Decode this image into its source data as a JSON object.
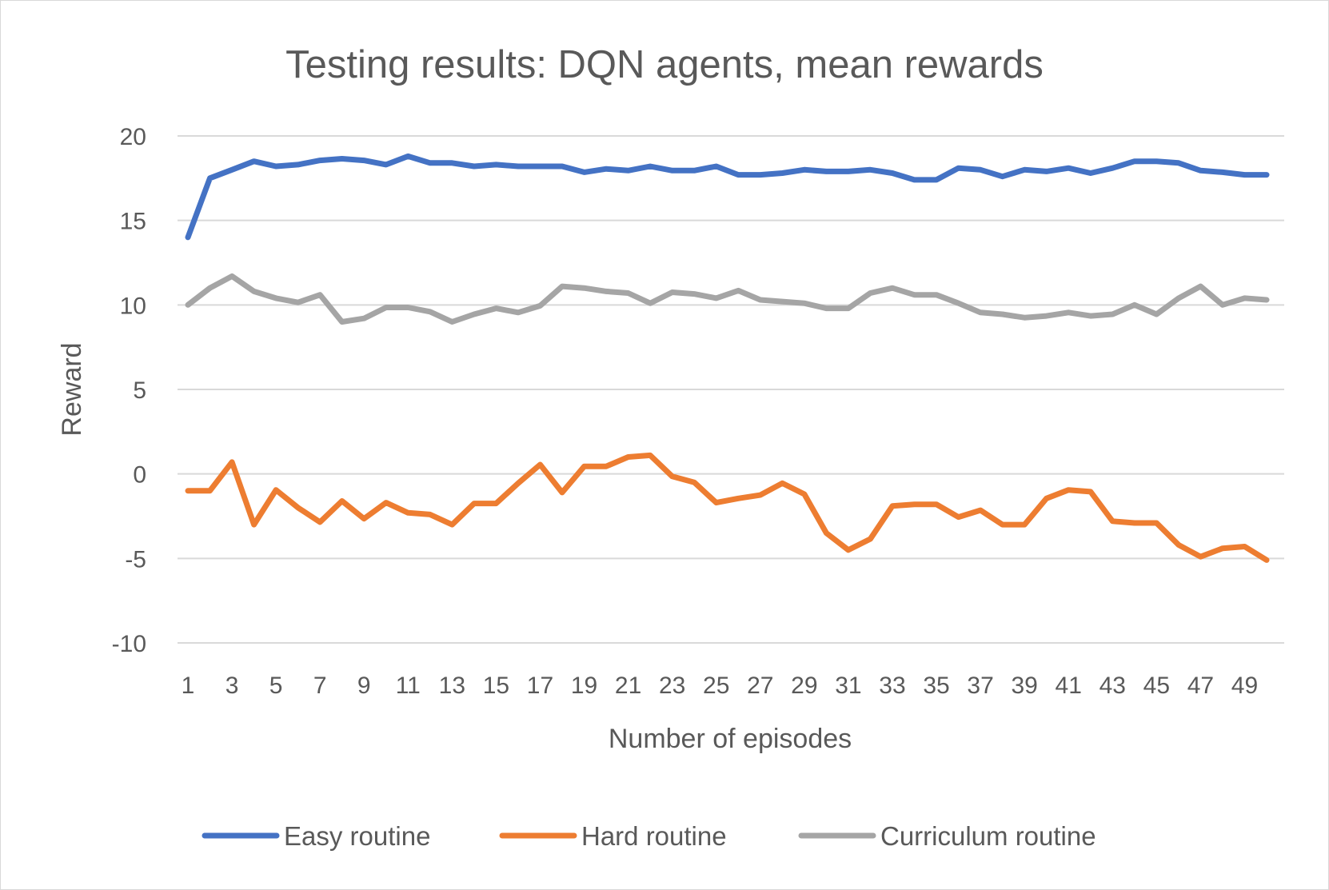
{
  "chart_data": {
    "type": "line",
    "title": "Testing results: DQN agents, mean rewards",
    "xlabel": "Number of episodes",
    "ylabel": "Reward",
    "ylim": [
      -10,
      20
    ],
    "yticks": [
      20,
      15,
      10,
      5,
      0,
      -5,
      -10
    ],
    "x": [
      1,
      2,
      3,
      4,
      5,
      6,
      7,
      8,
      9,
      10,
      11,
      12,
      13,
      14,
      15,
      16,
      17,
      18,
      19,
      20,
      21,
      22,
      23,
      24,
      25,
      26,
      27,
      28,
      29,
      30,
      31,
      32,
      33,
      34,
      35,
      36,
      37,
      38,
      39,
      40,
      41,
      42,
      43,
      44,
      45,
      46,
      47,
      48,
      49,
      50
    ],
    "xtick_labels": [
      "1",
      "3",
      "5",
      "7",
      "9",
      "11",
      "13",
      "15",
      "17",
      "19",
      "21",
      "23",
      "25",
      "27",
      "29",
      "31",
      "33",
      "35",
      "37",
      "39",
      "41",
      "43",
      "45",
      "47",
      "49"
    ],
    "grid": true,
    "legend_position": "bottom",
    "series": [
      {
        "name": "Easy routine",
        "color": "#4472C4",
        "values": [
          14.0,
          17.5,
          18.0,
          18.5,
          18.2,
          18.3,
          18.55,
          18.65,
          18.55,
          18.3,
          18.8,
          18.4,
          18.4,
          18.2,
          18.3,
          18.2,
          18.2,
          18.2,
          17.85,
          18.05,
          17.95,
          18.2,
          17.95,
          17.95,
          18.2,
          17.7,
          17.7,
          17.8,
          18.0,
          17.9,
          17.9,
          18.0,
          17.8,
          17.4,
          17.4,
          18.1,
          18.0,
          17.6,
          18.0,
          17.9,
          18.1,
          17.8,
          18.1,
          18.5,
          18.5,
          18.4,
          17.95,
          17.85,
          17.7,
          17.7
        ]
      },
      {
        "name": "Hard routine",
        "color": "#ED7D31",
        "values": [
          -1.0,
          -1.0,
          0.7,
          -3.0,
          -0.95,
          -2.0,
          -2.85,
          -1.6,
          -2.65,
          -1.7,
          -2.3,
          -2.4,
          -3.0,
          -1.75,
          -1.75,
          -0.55,
          0.55,
          -1.1,
          0.45,
          0.45,
          1.0,
          1.1,
          -0.15,
          -0.5,
          -1.7,
          -1.45,
          -1.25,
          -0.55,
          -1.2,
          -3.5,
          -4.5,
          -3.85,
          -1.9,
          -1.8,
          -1.8,
          -2.55,
          -2.15,
          -3.0,
          -3.0,
          -1.45,
          -0.95,
          -1.05,
          -2.8,
          -2.9,
          -2.9,
          -4.2,
          -4.9,
          -4.4,
          -4.3,
          -5.1
        ]
      },
      {
        "name": "Curriculum routine",
        "color": "#A5A5A5",
        "values": [
          10.0,
          11.0,
          11.7,
          10.8,
          10.4,
          10.15,
          10.6,
          9.0,
          9.2,
          9.85,
          9.85,
          9.6,
          9.0,
          9.45,
          9.8,
          9.55,
          9.95,
          11.1,
          11.0,
          10.8,
          10.7,
          10.1,
          10.75,
          10.65,
          10.4,
          10.85,
          10.3,
          10.2,
          10.1,
          9.8,
          9.8,
          10.7,
          11.0,
          10.6,
          10.6,
          10.1,
          9.55,
          9.45,
          9.25,
          9.35,
          9.55,
          9.35,
          9.45,
          10.0,
          9.45,
          10.4,
          11.1,
          10.0,
          10.4,
          10.3
        ]
      }
    ]
  }
}
